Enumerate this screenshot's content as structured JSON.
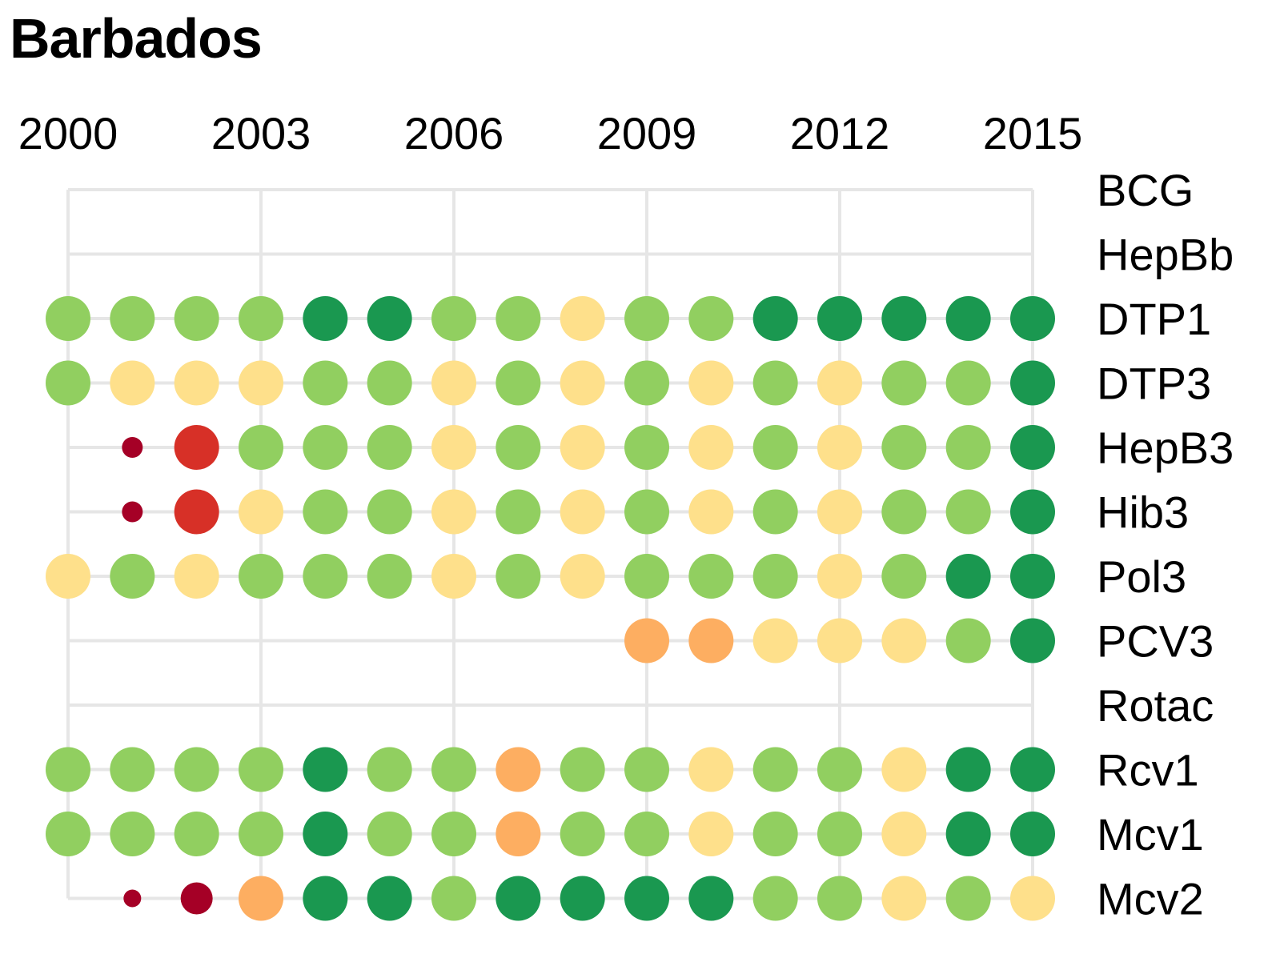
{
  "chart_data": {
    "type": "scatter",
    "title": "Barbados",
    "x_ticks": [
      2000,
      2003,
      2006,
      2009,
      2012,
      2015
    ],
    "x_range": [
      2000,
      2015
    ],
    "grid": true,
    "legend": "none",
    "colors": {
      "very_low": "#a50026",
      "low": "#d73027",
      "mid_low": "#fdae61",
      "mid": "#fee08b",
      "high": "#91cf60",
      "very_high": "#1a9850"
    },
    "years": [
      2000,
      2001,
      2002,
      2003,
      2004,
      2005,
      2006,
      2007,
      2008,
      2009,
      2010,
      2011,
      2012,
      2013,
      2014,
      2015
    ],
    "series": [
      {
        "name": "BCG",
        "line_start": 2000,
        "values": []
      },
      {
        "name": "HepBb",
        "line_start": 2000,
        "values": []
      },
      {
        "name": "DTP1",
        "line_start": 2000,
        "values": [
          {
            "year": 2000,
            "level": "high"
          },
          {
            "year": 2001,
            "level": "high"
          },
          {
            "year": 2002,
            "level": "high"
          },
          {
            "year": 2003,
            "level": "high"
          },
          {
            "year": 2004,
            "level": "very_high"
          },
          {
            "year": 2005,
            "level": "very_high"
          },
          {
            "year": 2006,
            "level": "high"
          },
          {
            "year": 2007,
            "level": "high"
          },
          {
            "year": 2008,
            "level": "mid"
          },
          {
            "year": 2009,
            "level": "high"
          },
          {
            "year": 2010,
            "level": "high"
          },
          {
            "year": 2011,
            "level": "very_high"
          },
          {
            "year": 2012,
            "level": "very_high"
          },
          {
            "year": 2013,
            "level": "very_high"
          },
          {
            "year": 2014,
            "level": "very_high"
          },
          {
            "year": 2015,
            "level": "very_high"
          }
        ]
      },
      {
        "name": "DTP3",
        "line_start": 2000,
        "values": [
          {
            "year": 2000,
            "level": "high"
          },
          {
            "year": 2001,
            "level": "mid"
          },
          {
            "year": 2002,
            "level": "mid"
          },
          {
            "year": 2003,
            "level": "mid"
          },
          {
            "year": 2004,
            "level": "high"
          },
          {
            "year": 2005,
            "level": "high"
          },
          {
            "year": 2006,
            "level": "mid"
          },
          {
            "year": 2007,
            "level": "high"
          },
          {
            "year": 2008,
            "level": "mid"
          },
          {
            "year": 2009,
            "level": "high"
          },
          {
            "year": 2010,
            "level": "mid"
          },
          {
            "year": 2011,
            "level": "high"
          },
          {
            "year": 2012,
            "level": "mid"
          },
          {
            "year": 2013,
            "level": "high"
          },
          {
            "year": 2014,
            "level": "high"
          },
          {
            "year": 2015,
            "level": "very_high"
          }
        ]
      },
      {
        "name": "HepB3",
        "line_start": 2000,
        "values": [
          {
            "year": 2001,
            "level": "very_low"
          },
          {
            "year": 2002,
            "level": "low"
          },
          {
            "year": 2003,
            "level": "high"
          },
          {
            "year": 2004,
            "level": "high"
          },
          {
            "year": 2005,
            "level": "high"
          },
          {
            "year": 2006,
            "level": "mid"
          },
          {
            "year": 2007,
            "level": "high"
          },
          {
            "year": 2008,
            "level": "mid"
          },
          {
            "year": 2009,
            "level": "high"
          },
          {
            "year": 2010,
            "level": "mid"
          },
          {
            "year": 2011,
            "level": "high"
          },
          {
            "year": 2012,
            "level": "mid"
          },
          {
            "year": 2013,
            "level": "high"
          },
          {
            "year": 2014,
            "level": "high"
          },
          {
            "year": 2015,
            "level": "very_high"
          }
        ]
      },
      {
        "name": "Hib3",
        "line_start": 2000,
        "values": [
          {
            "year": 2001,
            "level": "very_low"
          },
          {
            "year": 2002,
            "level": "low"
          },
          {
            "year": 2003,
            "level": "mid"
          },
          {
            "year": 2004,
            "level": "high"
          },
          {
            "year": 2005,
            "level": "high"
          },
          {
            "year": 2006,
            "level": "mid"
          },
          {
            "year": 2007,
            "level": "high"
          },
          {
            "year": 2008,
            "level": "mid"
          },
          {
            "year": 2009,
            "level": "high"
          },
          {
            "year": 2010,
            "level": "mid"
          },
          {
            "year": 2011,
            "level": "high"
          },
          {
            "year": 2012,
            "level": "mid"
          },
          {
            "year": 2013,
            "level": "high"
          },
          {
            "year": 2014,
            "level": "high"
          },
          {
            "year": 2015,
            "level": "very_high"
          }
        ]
      },
      {
        "name": "Pol3",
        "line_start": 2000,
        "values": [
          {
            "year": 2000,
            "level": "mid"
          },
          {
            "year": 2001,
            "level": "high"
          },
          {
            "year": 2002,
            "level": "mid"
          },
          {
            "year": 2003,
            "level": "high"
          },
          {
            "year": 2004,
            "level": "high"
          },
          {
            "year": 2005,
            "level": "high"
          },
          {
            "year": 2006,
            "level": "mid"
          },
          {
            "year": 2007,
            "level": "high"
          },
          {
            "year": 2008,
            "level": "mid"
          },
          {
            "year": 2009,
            "level": "high"
          },
          {
            "year": 2010,
            "level": "high"
          },
          {
            "year": 2011,
            "level": "high"
          },
          {
            "year": 2012,
            "level": "mid"
          },
          {
            "year": 2013,
            "level": "high"
          },
          {
            "year": 2014,
            "level": "very_high"
          },
          {
            "year": 2015,
            "level": "very_high"
          }
        ]
      },
      {
        "name": "PCV3",
        "line_start": 2000,
        "values": [
          {
            "year": 2009,
            "level": "mid_low"
          },
          {
            "year": 2010,
            "level": "mid_low"
          },
          {
            "year": 2011,
            "level": "mid"
          },
          {
            "year": 2012,
            "level": "mid"
          },
          {
            "year": 2013,
            "level": "mid"
          },
          {
            "year": 2014,
            "level": "high"
          },
          {
            "year": 2015,
            "level": "very_high"
          }
        ]
      },
      {
        "name": "Rotac",
        "line_start": 2000,
        "values": []
      },
      {
        "name": "Rcv1",
        "line_start": 2000,
        "values": [
          {
            "year": 2000,
            "level": "high"
          },
          {
            "year": 2001,
            "level": "high"
          },
          {
            "year": 2002,
            "level": "high"
          },
          {
            "year": 2003,
            "level": "high"
          },
          {
            "year": 2004,
            "level": "very_high"
          },
          {
            "year": 2005,
            "level": "high"
          },
          {
            "year": 2006,
            "level": "high"
          },
          {
            "year": 2007,
            "level": "mid_low"
          },
          {
            "year": 2008,
            "level": "high"
          },
          {
            "year": 2009,
            "level": "high"
          },
          {
            "year": 2010,
            "level": "mid"
          },
          {
            "year": 2011,
            "level": "high"
          },
          {
            "year": 2012,
            "level": "high"
          },
          {
            "year": 2013,
            "level": "mid"
          },
          {
            "year": 2014,
            "level": "very_high"
          },
          {
            "year": 2015,
            "level": "very_high"
          }
        ]
      },
      {
        "name": "Mcv1",
        "line_start": 2000,
        "values": [
          {
            "year": 2000,
            "level": "high"
          },
          {
            "year": 2001,
            "level": "high"
          },
          {
            "year": 2002,
            "level": "high"
          },
          {
            "year": 2003,
            "level": "high"
          },
          {
            "year": 2004,
            "level": "very_high"
          },
          {
            "year": 2005,
            "level": "high"
          },
          {
            "year": 2006,
            "level": "high"
          },
          {
            "year": 2007,
            "level": "mid_low"
          },
          {
            "year": 2008,
            "level": "high"
          },
          {
            "year": 2009,
            "level": "high"
          },
          {
            "year": 2010,
            "level": "mid"
          },
          {
            "year": 2011,
            "level": "high"
          },
          {
            "year": 2012,
            "level": "high"
          },
          {
            "year": 2013,
            "level": "mid"
          },
          {
            "year": 2014,
            "level": "very_high"
          },
          {
            "year": 2015,
            "level": "very_high"
          }
        ]
      },
      {
        "name": "Mcv2",
        "line_start": 2000,
        "values": [
          {
            "year": 2001,
            "level": "very_low",
            "size": "small"
          },
          {
            "year": 2002,
            "level": "very_low"
          },
          {
            "year": 2003,
            "level": "mid_low"
          },
          {
            "year": 2004,
            "level": "very_high"
          },
          {
            "year": 2005,
            "level": "very_high"
          },
          {
            "year": 2006,
            "level": "high"
          },
          {
            "year": 2007,
            "level": "very_high"
          },
          {
            "year": 2008,
            "level": "very_high"
          },
          {
            "year": 2009,
            "level": "very_high"
          },
          {
            "year": 2010,
            "level": "very_high"
          },
          {
            "year": 2011,
            "level": "high"
          },
          {
            "year": 2012,
            "level": "high"
          },
          {
            "year": 2013,
            "level": "mid"
          },
          {
            "year": 2014,
            "level": "high"
          },
          {
            "year": 2015,
            "level": "mid"
          }
        ]
      }
    ]
  }
}
